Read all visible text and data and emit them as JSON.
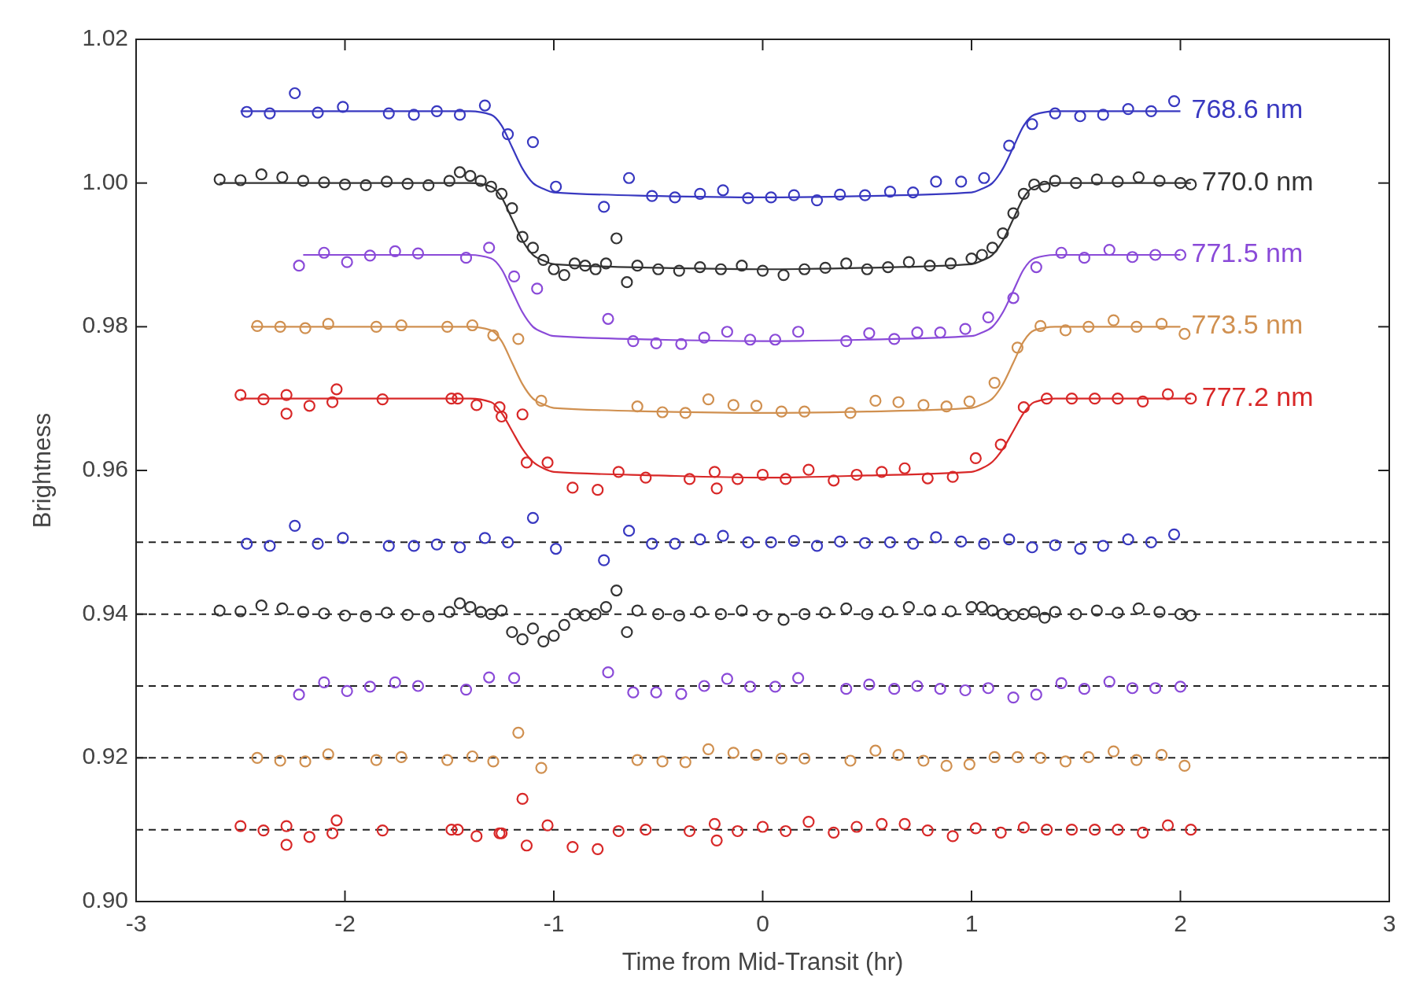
{
  "chart_data": {
    "type": "scatter",
    "xlabel": "Time from Mid-Transit (hr)",
    "ylabel": "Brightness",
    "xlim": [
      -3,
      3
    ],
    "xticks": [
      -3,
      -2,
      -1,
      0,
      1,
      2,
      3
    ],
    "ylim": [
      0.9,
      1.02
    ],
    "yticks": [
      {
        "value": 0.9,
        "label": "0.90"
      },
      {
        "value": 0.92,
        "label": "0.92"
      },
      {
        "value": 0.94,
        "label": "0.94"
      },
      {
        "value": 0.96,
        "label": "0.96"
      },
      {
        "value": 0.98,
        "label": "0.98"
      },
      {
        "value": 1.0,
        "label": "1.00"
      },
      {
        "value": 1.02,
        "label": "1.02"
      }
    ],
    "grid": false,
    "ref_lines": [
      {
        "axis": "y",
        "value": 0.95,
        "color": "#222222",
        "line_style": "dashed"
      },
      {
        "axis": "y",
        "value": 0.94,
        "color": "#222222",
        "line_style": "dashed"
      },
      {
        "axis": "y",
        "value": 0.93,
        "color": "#222222",
        "line_style": "dashed"
      },
      {
        "axis": "y",
        "value": 0.92,
        "color": "#222222",
        "line_style": "dashed"
      },
      {
        "axis": "y",
        "value": 0.91,
        "color": "#222222",
        "line_style": "dashed"
      }
    ],
    "series": [
      {
        "type": "line",
        "name": "768.6 nm",
        "color": "#3838c0",
        "marker": "none",
        "line_style": "solid",
        "x": [
          -2.5,
          -1.4,
          -1.3,
          -1.25,
          -1.2,
          -1.15,
          -1.1,
          -1.05,
          -1.0,
          -0.5,
          0,
          0.5,
          1.0,
          1.05,
          1.1,
          1.15,
          1.2,
          1.25,
          1.3,
          1.4,
          2.0
        ],
        "values": [
          1.01,
          1.01,
          1.0095,
          1.008,
          1.005,
          1.002,
          1.0,
          0.9992,
          0.9987,
          0.9982,
          0.998,
          0.9982,
          0.9987,
          0.9992,
          1.0,
          1.002,
          1.005,
          1.008,
          1.0095,
          1.01,
          1.01
        ]
      },
      {
        "type": "line",
        "name": "770.0 nm",
        "color": "#333333",
        "marker": "none",
        "line_style": "solid",
        "x": [
          -2.6,
          -1.4,
          -1.3,
          -1.25,
          -1.2,
          -1.15,
          -1.1,
          -1.05,
          -1.0,
          -0.5,
          0,
          0.5,
          1.0,
          1.05,
          1.1,
          1.15,
          1.2,
          1.25,
          1.3,
          1.4,
          2.05
        ],
        "values": [
          1.0,
          1.0,
          0.9995,
          0.998,
          0.995,
          0.992,
          0.99,
          0.9892,
          0.9887,
          0.9882,
          0.988,
          0.9882,
          0.9887,
          0.9892,
          0.99,
          0.992,
          0.995,
          0.998,
          0.9995,
          1.0,
          1.0
        ]
      },
      {
        "type": "line",
        "name": "771.5 nm",
        "color": "#8a4ad8",
        "marker": "none",
        "line_style": "solid",
        "x": [
          -2.2,
          -1.4,
          -1.3,
          -1.25,
          -1.2,
          -1.15,
          -1.1,
          -1.05,
          -1.0,
          -0.5,
          0,
          0.5,
          1.0,
          1.05,
          1.1,
          1.15,
          1.2,
          1.25,
          1.3,
          1.4,
          2.0
        ],
        "values": [
          0.99,
          0.99,
          0.9895,
          0.988,
          0.985,
          0.982,
          0.98,
          0.9792,
          0.9787,
          0.9782,
          0.978,
          0.9782,
          0.9787,
          0.9792,
          0.98,
          0.982,
          0.985,
          0.988,
          0.9895,
          0.99,
          0.99
        ]
      },
      {
        "type": "line",
        "name": "773.5 nm",
        "color": "#d09050",
        "marker": "none",
        "line_style": "solid",
        "x": [
          -2.45,
          -1.4,
          -1.3,
          -1.25,
          -1.2,
          -1.15,
          -1.1,
          -1.05,
          -1.0,
          -0.5,
          0,
          0.5,
          1.0,
          1.05,
          1.1,
          1.15,
          1.2,
          1.25,
          1.3,
          1.4,
          2.0
        ],
        "values": [
          0.98,
          0.98,
          0.9795,
          0.978,
          0.975,
          0.972,
          0.97,
          0.9692,
          0.9687,
          0.9682,
          0.968,
          0.9682,
          0.9687,
          0.9692,
          0.97,
          0.972,
          0.975,
          0.978,
          0.9795,
          0.98,
          0.98
        ]
      },
      {
        "type": "line",
        "name": "777.2 nm",
        "color": "#d82828",
        "marker": "none",
        "line_style": "solid",
        "x": [
          -2.5,
          -1.4,
          -1.3,
          -1.25,
          -1.2,
          -1.15,
          -1.1,
          -1.05,
          -1.0,
          -0.5,
          0,
          0.5,
          1.0,
          1.05,
          1.1,
          1.15,
          1.2,
          1.25,
          1.3,
          1.4,
          2.05
        ],
        "values": [
          0.97,
          0.97,
          0.9695,
          0.968,
          0.9655,
          0.963,
          0.9612,
          0.9603,
          0.9598,
          0.9593,
          0.959,
          0.9593,
          0.9598,
          0.9603,
          0.9612,
          0.963,
          0.9655,
          0.968,
          0.9695,
          0.97,
          0.97
        ]
      },
      {
        "color": "#3838c0",
        "marker": "circle",
        "x": [
          -2.47,
          -2.36,
          -2.24,
          -2.13,
          -2.01,
          -1.79,
          -1.67,
          -1.56,
          -1.45,
          -1.33,
          -1.22,
          -1.1,
          -0.99,
          -0.76,
          -0.64,
          -0.53,
          -0.42,
          -0.3,
          -0.19,
          -0.07,
          0.04,
          0.15,
          0.26,
          0.37,
          0.49,
          0.61,
          0.72,
          0.83,
          0.95,
          1.06,
          1.18,
          1.29,
          1.4,
          1.52,
          1.63,
          1.75,
          1.86,
          1.97
        ],
        "values": [
          1.0099,
          1.0097,
          1.0125,
          1.0098,
          1.0106,
          1.0097,
          1.0095,
          1.01,
          1.0095,
          1.0108,
          1.0068,
          1.0057,
          0.9995,
          0.9967,
          1.0007,
          0.9982,
          0.998,
          0.9985,
          0.999,
          0.9979,
          0.998,
          0.9983,
          0.9976,
          0.9984,
          0.9983,
          0.9988,
          0.9987,
          1.0002,
          1.0002,
          1.0007,
          1.0052,
          1.0082,
          1.0097,
          1.0093,
          1.0095,
          1.0103,
          1.01,
          1.0114
        ]
      },
      {
        "type": "scatter",
        "color": "#333333",
        "marker": "circle",
        "x": [
          -2.6,
          -2.5,
          -2.4,
          -2.3,
          -2.2,
          -2.1,
          -2.0,
          -1.9,
          -1.8,
          -1.7,
          -1.6,
          -1.5,
          -1.45,
          -1.4,
          -1.35,
          -1.3,
          -1.25,
          -1.2,
          -1.15,
          -1.1,
          -1.05,
          -1.0,
          -0.95,
          -0.9,
          -0.85,
          -0.8,
          -0.75,
          -0.7,
          -0.65,
          -0.6,
          -0.5,
          -0.4,
          -0.3,
          -0.2,
          -0.1,
          0,
          0.1,
          0.2,
          0.3,
          0.4,
          0.5,
          0.6,
          0.7,
          0.8,
          0.9,
          1.0,
          1.05,
          1.1,
          1.15,
          1.2,
          1.25,
          1.3,
          1.35,
          1.4,
          1.5,
          1.6,
          1.7,
          1.8,
          1.9,
          2.0,
          2.05
        ],
        "values": [
          1.0005,
          1.0004,
          1.0012,
          1.0008,
          1.0003,
          1.0001,
          0.9998,
          0.9997,
          1.0002,
          0.9999,
          0.9997,
          1.0003,
          1.0015,
          1.001,
          1.0003,
          0.9995,
          0.9985,
          0.9965,
          0.9925,
          0.991,
          0.9893,
          0.988,
          0.9872,
          0.9888,
          0.9885,
          0.988,
          0.9888,
          0.9923,
          0.9862,
          0.9885,
          0.988,
          0.9878,
          0.9883,
          0.988,
          0.9885,
          0.9878,
          0.9872,
          0.988,
          0.9882,
          0.9888,
          0.988,
          0.9883,
          0.989,
          0.9885,
          0.9888,
          0.9895,
          0.99,
          0.991,
          0.993,
          0.9958,
          0.9985,
          0.9998,
          0.9995,
          1.0003,
          1.0,
          1.0005,
          1.0002,
          1.0008,
          1.0003,
          1.0,
          0.9998
        ]
      },
      {
        "type": "scatter",
        "color": "#8a4ad8",
        "marker": "circle",
        "x": [
          -2.22,
          -2.1,
          -1.99,
          -1.88,
          -1.76,
          -1.65,
          -1.42,
          -1.31,
          -1.19,
          -1.08,
          -0.74,
          -0.62,
          -0.51,
          -0.39,
          -0.28,
          -0.17,
          -0.06,
          0.06,
          0.17,
          0.4,
          0.51,
          0.63,
          0.74,
          0.85,
          0.97,
          1.08,
          1.2,
          1.31,
          1.43,
          1.54,
          1.66,
          1.77,
          1.88,
          2.0
        ],
        "values": [
          0.9885,
          0.9903,
          0.989,
          0.9899,
          0.9905,
          0.9902,
          0.9896,
          0.991,
          0.987,
          0.9853,
          0.9811,
          0.978,
          0.9777,
          0.9776,
          0.9785,
          0.9793,
          0.9782,
          0.9782,
          0.9793,
          0.978,
          0.9791,
          0.9783,
          0.9792,
          0.9792,
          0.9797,
          0.9813,
          0.984,
          0.9883,
          0.9903,
          0.9896,
          0.9907,
          0.9897,
          0.99,
          0.99
        ]
      },
      {
        "type": "scatter",
        "color": "#d09050",
        "marker": "circle",
        "x": [
          -2.42,
          -2.31,
          -2.19,
          -2.08,
          -1.85,
          -1.73,
          -1.51,
          -1.39,
          -1.29,
          -1.17,
          -1.06,
          -0.6,
          -0.48,
          -0.37,
          -0.26,
          -0.14,
          -0.03,
          0.09,
          0.2,
          0.42,
          0.54,
          0.65,
          0.77,
          0.88,
          0.99,
          1.11,
          1.22,
          1.33,
          1.45,
          1.56,
          1.68,
          1.79,
          1.91,
          2.02
        ],
        "values": [
          0.9801,
          0.98,
          0.9798,
          0.9804,
          0.98,
          0.9802,
          0.98,
          0.9802,
          0.9788,
          0.9783,
          0.9697,
          0.9689,
          0.9681,
          0.968,
          0.9699,
          0.9691,
          0.969,
          0.9682,
          0.9682,
          0.968,
          0.9697,
          0.9695,
          0.9691,
          0.9689,
          0.9696,
          0.9722,
          0.9771,
          0.9801,
          0.9795,
          0.98,
          0.9809,
          0.98,
          0.9804,
          0.979
        ]
      },
      {
        "type": "scatter",
        "color": "#d82828",
        "marker": "circle",
        "x": [
          -2.5,
          -2.39,
          -2.28,
          -2.28,
          -2.17,
          -2.06,
          -2.04,
          -1.82,
          -1.49,
          -1.46,
          -1.37,
          -1.26,
          -1.25,
          -1.15,
          -1.13,
          -1.03,
          -0.91,
          -0.79,
          -0.69,
          -0.56,
          -0.35,
          -0.23,
          -0.22,
          -0.12,
          0.0,
          0.11,
          0.22,
          0.34,
          0.45,
          0.57,
          0.68,
          0.79,
          0.91,
          1.02,
          1.14,
          1.25,
          1.36,
          1.48,
          1.59,
          1.7,
          1.82,
          1.94,
          2.05
        ],
        "values": [
          0.9705,
          0.9699,
          0.9705,
          0.9679,
          0.969,
          0.9695,
          0.9713,
          0.9699,
          0.97,
          0.97,
          0.9691,
          0.9688,
          0.9675,
          0.9678,
          0.9611,
          0.9611,
          0.9576,
          0.9573,
          0.9598,
          0.959,
          0.9588,
          0.9598,
          0.9575,
          0.9588,
          0.9594,
          0.9588,
          0.9601,
          0.9586,
          0.9594,
          0.9598,
          0.9603,
          0.9589,
          0.9591,
          0.9617,
          0.9636,
          0.9688,
          0.97,
          0.97,
          0.97,
          0.97,
          0.9696,
          0.9706,
          0.97
        ]
      },
      {
        "type": "scatter",
        "color": "#3838c0",
        "marker": "circle",
        "x": [
          -2.47,
          -2.36,
          -2.24,
          -2.13,
          -2.01,
          -1.79,
          -1.67,
          -1.56,
          -1.45,
          -1.33,
          -1.22,
          -1.1,
          -0.99,
          -0.76,
          -0.64,
          -0.53,
          -0.42,
          -0.3,
          -0.19,
          -0.07,
          0.04,
          0.15,
          0.26,
          0.37,
          0.49,
          0.61,
          0.72,
          0.83,
          0.95,
          1.06,
          1.18,
          1.29,
          1.4,
          1.52,
          1.63,
          1.75,
          1.86,
          1.97
        ],
        "values": [
          0.9498,
          0.9495,
          0.9523,
          0.9498,
          0.9506,
          0.9495,
          0.9495,
          0.9497,
          0.9493,
          0.9506,
          0.95,
          0.9534,
          0.9491,
          0.9475,
          0.9516,
          0.9498,
          0.9498,
          0.9504,
          0.9509,
          0.95,
          0.95,
          0.9502,
          0.9495,
          0.9501,
          0.9499,
          0.95,
          0.9498,
          0.9507,
          0.9501,
          0.9498,
          0.9504,
          0.9493,
          0.9496,
          0.9491,
          0.9495,
          0.9504,
          0.95,
          0.9511
        ]
      },
      {
        "type": "scatter",
        "color": "#333333",
        "marker": "circle",
        "x": [
          -2.6,
          -2.5,
          -2.4,
          -2.3,
          -2.2,
          -2.1,
          -2.0,
          -1.9,
          -1.8,
          -1.7,
          -1.6,
          -1.5,
          -1.45,
          -1.4,
          -1.35,
          -1.3,
          -1.25,
          -1.2,
          -1.15,
          -1.1,
          -1.05,
          -1.0,
          -0.95,
          -0.9,
          -0.85,
          -0.8,
          -0.75,
          -0.7,
          -0.65,
          -0.6,
          -0.5,
          -0.4,
          -0.3,
          -0.2,
          -0.1,
          0,
          0.1,
          0.2,
          0.3,
          0.4,
          0.5,
          0.6,
          0.7,
          0.8,
          0.9,
          1.0,
          1.05,
          1.1,
          1.15,
          1.2,
          1.25,
          1.3,
          1.35,
          1.4,
          1.5,
          1.6,
          1.7,
          1.8,
          1.9,
          2.0,
          2.05
        ],
        "values": [
          0.9405,
          0.9404,
          0.9412,
          0.9408,
          0.9403,
          0.9401,
          0.9398,
          0.9397,
          0.9402,
          0.9399,
          0.9397,
          0.9403,
          0.9415,
          0.941,
          0.9403,
          0.94,
          0.9405,
          0.9375,
          0.9365,
          0.938,
          0.9362,
          0.937,
          0.9385,
          0.94,
          0.9398,
          0.94,
          0.941,
          0.9433,
          0.9375,
          0.9405,
          0.94,
          0.9398,
          0.9403,
          0.94,
          0.9405,
          0.9398,
          0.9392,
          0.94,
          0.9402,
          0.9408,
          0.94,
          0.9403,
          0.941,
          0.9405,
          0.9404,
          0.941,
          0.941,
          0.9405,
          0.94,
          0.9398,
          0.94,
          0.9403,
          0.9395,
          0.9403,
          0.94,
          0.9405,
          0.9402,
          0.9408,
          0.9403,
          0.94,
          0.9398
        ]
      },
      {
        "type": "scatter",
        "color": "#8a4ad8",
        "marker": "circle",
        "x": [
          -2.22,
          -2.1,
          -1.99,
          -1.88,
          -1.76,
          -1.65,
          -1.42,
          -1.31,
          -1.19,
          -0.74,
          -0.62,
          -0.51,
          -0.39,
          -0.28,
          -0.17,
          -0.06,
          0.06,
          0.17,
          0.4,
          0.51,
          0.63,
          0.74,
          0.85,
          0.97,
          1.08,
          1.2,
          1.31,
          1.43,
          1.54,
          1.66,
          1.77,
          1.88,
          2.0
        ],
        "values": [
          0.9288,
          0.9305,
          0.9293,
          0.9299,
          0.9305,
          0.93,
          0.9295,
          0.9312,
          0.9311,
          0.9319,
          0.9291,
          0.9291,
          0.9289,
          0.93,
          0.931,
          0.9299,
          0.9299,
          0.9311,
          0.9296,
          0.9302,
          0.9296,
          0.93,
          0.9296,
          0.9294,
          0.9297,
          0.9284,
          0.9288,
          0.9304,
          0.9296,
          0.9306,
          0.9297,
          0.9297,
          0.9299
        ]
      },
      {
        "type": "scatter",
        "color": "#d09050",
        "marker": "circle",
        "x": [
          -2.42,
          -2.31,
          -2.19,
          -2.08,
          -1.85,
          -1.73,
          -1.51,
          -1.39,
          -1.29,
          -1.17,
          -1.06,
          -0.6,
          -0.48,
          -0.37,
          -0.26,
          -0.14,
          -0.03,
          0.09,
          0.2,
          0.42,
          0.54,
          0.65,
          0.77,
          0.88,
          0.99,
          1.11,
          1.22,
          1.33,
          1.45,
          1.56,
          1.68,
          1.79,
          1.91,
          2.02
        ],
        "values": [
          0.92,
          0.9196,
          0.9195,
          0.9205,
          0.9197,
          0.9201,
          0.9197,
          0.9202,
          0.9195,
          0.9235,
          0.9186,
          0.9197,
          0.9195,
          0.9194,
          0.9212,
          0.9207,
          0.9204,
          0.9199,
          0.9199,
          0.9196,
          0.921,
          0.9204,
          0.9196,
          0.9189,
          0.9191,
          0.9201,
          0.9201,
          0.92,
          0.9195,
          0.9201,
          0.9209,
          0.9197,
          0.9204,
          0.9189
        ]
      },
      {
        "type": "scatter",
        "color": "#d82828",
        "marker": "circle",
        "x": [
          -2.5,
          -2.39,
          -2.28,
          -2.28,
          -2.17,
          -2.06,
          -2.04,
          -1.82,
          -1.49,
          -1.46,
          -1.37,
          -1.26,
          -1.25,
          -1.15,
          -1.13,
          -1.03,
          -0.91,
          -0.79,
          -0.69,
          -0.56,
          -0.35,
          -0.23,
          -0.22,
          -0.12,
          0.0,
          0.11,
          0.22,
          0.34,
          0.45,
          0.57,
          0.68,
          0.79,
          0.91,
          1.02,
          1.14,
          1.25,
          1.36,
          1.48,
          1.59,
          1.7,
          1.82,
          1.94,
          2.05
        ],
        "values": [
          0.9105,
          0.9099,
          0.9105,
          0.9079,
          0.909,
          0.9095,
          0.9113,
          0.9099,
          0.91,
          0.91,
          0.9091,
          0.9095,
          0.9095,
          0.9143,
          0.9078,
          0.9106,
          0.9076,
          0.9073,
          0.9098,
          0.91,
          0.9098,
          0.9108,
          0.9085,
          0.9098,
          0.9104,
          0.9098,
          0.9111,
          0.9096,
          0.9104,
          0.9108,
          0.9108,
          0.9099,
          0.9091,
          0.9102,
          0.9096,
          0.9103,
          0.91,
          0.91,
          0.91,
          0.91,
          0.9096,
          0.9106,
          0.91
        ]
      }
    ]
  }
}
